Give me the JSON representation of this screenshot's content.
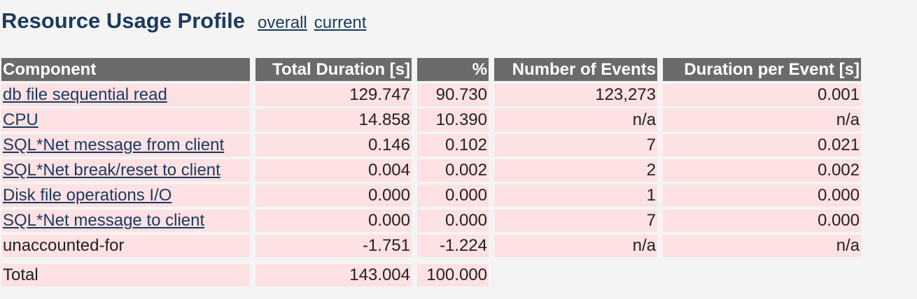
{
  "header": {
    "title": "Resource Usage Profile",
    "links": [
      "overall",
      "current"
    ]
  },
  "table": {
    "columns": [
      "Component",
      "Total Duration [s]",
      "%",
      "Number of Events",
      "Duration per Event [s]"
    ],
    "rows": [
      {
        "link": true,
        "cells": [
          "db file sequential read",
          "129.747",
          "90.730",
          "123,273",
          "0.001"
        ]
      },
      {
        "link": true,
        "cells": [
          "CPU",
          "14.858",
          "10.390",
          "n/a",
          "n/a"
        ]
      },
      {
        "link": true,
        "cells": [
          "SQL*Net message from client",
          "0.146",
          "0.102",
          "7",
          "0.021"
        ]
      },
      {
        "link": true,
        "cells": [
          "SQL*Net break/reset to client",
          "0.004",
          "0.002",
          "2",
          "0.002"
        ]
      },
      {
        "link": true,
        "cells": [
          "Disk file operations I/O",
          "0.000",
          "0.000",
          "1",
          "0.000"
        ]
      },
      {
        "link": true,
        "cells": [
          "SQL*Net message to client",
          "0.000",
          "0.000",
          "7",
          "0.000"
        ]
      },
      {
        "link": false,
        "cells": [
          "unaccounted-for",
          "-1.751",
          "-1.224",
          "n/a",
          "n/a"
        ]
      }
    ],
    "total": [
      "Total",
      "143.004",
      "100.000"
    ]
  }
}
